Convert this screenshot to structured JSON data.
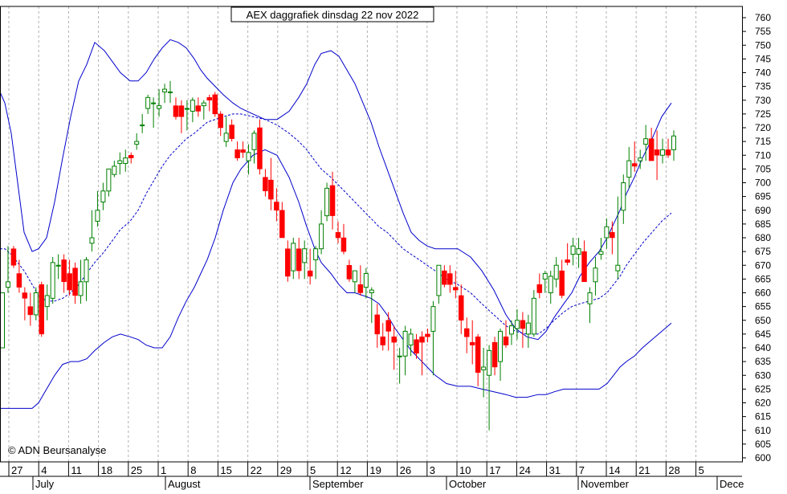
{
  "chart_data": {
    "type": "candlestick",
    "title": "AEX daggrafiek dinsdag 22 nov 2022",
    "copyright": "© ADN Beursanalyse",
    "ylim": [
      600,
      760
    ],
    "y_ticks": [
      600,
      605,
      610,
      615,
      620,
      625,
      630,
      635,
      640,
      645,
      650,
      655,
      660,
      665,
      670,
      675,
      680,
      685,
      690,
      695,
      700,
      705,
      710,
      715,
      720,
      725,
      730,
      735,
      740,
      745,
      750,
      755,
      760
    ],
    "x_tick_labels": [
      "27",
      "4",
      "11",
      "18",
      "25",
      "1",
      "8",
      "15",
      "22",
      "29",
      "5",
      "12",
      "19",
      "26",
      "3",
      "10",
      "17",
      "24",
      "31",
      "7",
      "14",
      "21",
      "28",
      "5"
    ],
    "months": [
      "July",
      "August",
      "September",
      "October",
      "November",
      "Dece"
    ],
    "grid": "vertical dashed at weekly ticks",
    "colors": {
      "up": "#008000",
      "down": "#ff0000",
      "band": "#0000cc",
      "background": "#ffffff",
      "grid": "#b0b0b0"
    },
    "candles": [
      [
        640,
        660,
        640,
        660
      ],
      [
        662,
        677,
        660,
        664
      ],
      [
        676,
        677,
        669,
        670
      ],
      [
        667,
        672,
        660,
        662
      ],
      [
        660,
        662,
        650,
        658
      ],
      [
        655,
        660,
        648,
        652
      ],
      [
        652,
        662,
        650,
        660
      ],
      [
        663,
        664,
        644,
        645
      ],
      [
        655,
        663,
        650,
        659
      ],
      [
        658,
        673,
        656,
        671
      ],
      [
        670,
        674,
        665,
        670
      ],
      [
        672,
        674,
        660,
        664
      ],
      [
        667,
        672,
        659,
        661
      ],
      [
        669,
        671,
        656,
        659
      ],
      [
        659,
        672,
        656,
        664
      ],
      [
        664,
        673,
        657,
        672
      ],
      [
        678,
        690,
        675,
        680
      ],
      [
        686,
        697,
        684,
        690
      ],
      [
        693,
        700,
        690,
        697
      ],
      [
        697,
        705,
        695,
        705
      ],
      [
        703,
        708,
        702,
        706
      ],
      [
        707,
        711,
        703,
        708
      ],
      [
        707,
        712,
        704,
        709
      ],
      [
        710,
        711,
        707,
        709
      ],
      [
        714,
        718,
        712,
        715
      ],
      [
        721,
        725,
        718,
        721
      ],
      [
        727,
        732,
        725,
        731
      ],
      [
        729,
        731,
        720,
        729
      ],
      [
        727,
        734,
        724,
        728
      ],
      [
        733,
        736,
        729,
        734
      ],
      [
        733,
        737,
        729,
        733
      ],
      [
        728,
        731,
        723,
        724
      ],
      [
        728,
        730,
        718,
        724
      ],
      [
        727,
        730,
        719,
        727
      ],
      [
        726,
        731,
        722,
        730
      ],
      [
        728,
        731,
        724,
        726
      ],
      [
        728,
        730,
        723,
        729
      ],
      [
        731,
        732,
        726,
        730
      ],
      [
        732,
        733,
        724,
        725
      ],
      [
        725,
        726,
        717,
        720
      ],
      [
        715,
        724,
        713,
        718
      ],
      [
        721,
        723,
        715,
        716
      ],
      [
        712,
        715,
        708,
        709
      ],
      [
        712,
        715,
        709,
        711
      ],
      [
        708,
        714,
        703,
        711
      ],
      [
        712,
        719,
        707,
        718
      ],
      [
        720,
        723,
        703,
        705
      ],
      [
        702,
        705,
        695,
        697
      ],
      [
        701,
        709,
        690,
        694
      ],
      [
        693,
        698,
        686,
        690
      ],
      [
        690,
        693,
        680,
        680
      ],
      [
        676,
        679,
        664,
        666
      ],
      [
        668,
        680,
        665,
        678
      ],
      [
        676,
        680,
        665,
        668
      ],
      [
        671,
        679,
        665,
        676
      ],
      [
        668,
        676,
        663,
        666
      ],
      [
        672,
        677,
        665,
        676
      ],
      [
        676,
        690,
        674,
        685
      ],
      [
        688,
        700,
        686,
        698
      ],
      [
        699,
        704,
        683,
        688
      ],
      [
        682,
        686,
        678,
        680
      ],
      [
        680,
        685,
        674,
        675
      ],
      [
        670,
        672,
        664,
        665
      ],
      [
        664,
        668,
        660,
        668
      ],
      [
        663,
        670,
        659,
        660
      ],
      [
        662,
        669,
        658,
        667
      ],
      [
        660,
        662,
        649,
        661
      ],
      [
        652,
        656,
        640,
        645
      ],
      [
        644,
        649,
        639,
        641
      ],
      [
        650,
        653,
        639,
        646
      ],
      [
        644,
        648,
        632,
        642
      ],
      [
        637,
        640,
        627,
        637
      ],
      [
        637,
        648,
        630,
        646
      ],
      [
        641,
        647,
        637,
        645
      ],
      [
        643,
        645,
        636,
        638
      ],
      [
        644,
        646,
        630,
        642
      ],
      [
        645,
        647,
        642,
        644
      ],
      [
        646,
        657,
        630,
        655
      ],
      [
        659,
        670,
        656,
        670
      ],
      [
        668,
        670,
        662,
        663
      ],
      [
        667,
        670,
        660,
        663
      ],
      [
        662,
        668,
        658,
        661
      ],
      [
        659,
        663,
        645,
        650
      ],
      [
        647,
        651,
        638,
        644
      ],
      [
        642,
        650,
        634,
        641
      ],
      [
        644,
        645,
        626,
        631
      ],
      [
        632,
        640,
        622,
        633
      ],
      [
        630,
        641,
        610,
        639
      ],
      [
        642,
        644,
        630,
        633
      ],
      [
        635,
        647,
        628,
        646
      ],
      [
        644,
        650,
        640,
        641
      ],
      [
        645,
        650,
        641,
        648
      ],
      [
        647,
        654,
        643,
        650
      ],
      [
        650,
        653,
        640,
        647
      ],
      [
        645,
        652,
        640,
        649
      ],
      [
        645,
        661,
        644,
        658
      ],
      [
        663,
        667,
        658,
        660
      ],
      [
        665,
        668,
        660,
        667
      ],
      [
        660,
        668,
        656,
        666
      ],
      [
        665,
        673,
        662,
        670
      ],
      [
        668,
        672,
        658,
        659
      ],
      [
        672,
        678,
        670,
        671
      ],
      [
        674,
        680,
        670,
        677
      ],
      [
        674,
        680,
        669,
        676
      ],
      [
        675,
        679,
        665,
        664
      ],
      [
        656,
        662,
        649,
        660
      ],
      [
        664,
        673,
        659,
        669
      ],
      [
        674,
        680,
        672,
        675
      ],
      [
        680,
        687,
        676,
        684
      ],
      [
        682,
        686,
        674,
        680
      ],
      [
        668,
        695,
        665,
        670
      ],
      [
        690,
        703,
        685,
        700
      ],
      [
        702,
        713,
        698,
        708
      ],
      [
        707,
        715,
        704,
        706
      ],
      [
        708,
        712,
        705,
        709
      ],
      [
        714,
        721,
        708,
        716
      ],
      [
        716,
        720,
        708,
        708
      ],
      [
        712,
        719,
        701,
        710
      ],
      [
        710,
        716,
        707,
        712
      ],
      [
        712,
        716,
        709,
        710
      ],
      [
        712,
        719,
        708,
        717
      ]
    ],
    "bollinger_upper": [
      [
        0,
        733
      ],
      [
        6,
        729
      ],
      [
        14,
        718
      ],
      [
        22,
        700
      ],
      [
        30,
        682
      ],
      [
        40,
        675
      ],
      [
        48,
        676
      ],
      [
        58,
        680
      ],
      [
        68,
        693
      ],
      [
        78,
        709
      ],
      [
        88,
        724
      ],
      [
        98,
        737
      ],
      [
        108,
        743
      ],
      [
        118,
        751
      ],
      [
        130,
        748
      ],
      [
        140,
        744
      ],
      [
        150,
        740
      ],
      [
        162,
        737
      ],
      [
        172,
        737
      ],
      [
        182,
        740
      ],
      [
        192,
        745
      ],
      [
        202,
        749
      ],
      [
        212,
        752
      ],
      [
        222,
        751
      ],
      [
        232,
        749
      ],
      [
        242,
        745
      ],
      [
        250,
        741
      ],
      [
        258,
        738
      ],
      [
        268,
        735
      ],
      [
        278,
        732
      ],
      [
        290,
        729
      ],
      [
        300,
        727
      ],
      [
        315,
        725
      ],
      [
        330,
        723
      ],
      [
        345,
        723
      ],
      [
        360,
        726
      ],
      [
        372,
        731
      ],
      [
        382,
        736
      ],
      [
        392,
        743
      ],
      [
        400,
        747
      ],
      [
        412,
        748
      ],
      [
        422,
        746
      ],
      [
        432,
        741
      ],
      [
        442,
        736
      ],
      [
        452,
        729
      ],
      [
        462,
        722
      ],
      [
        472,
        713
      ],
      [
        482,
        705
      ],
      [
        492,
        697
      ],
      [
        502,
        689
      ],
      [
        512,
        682
      ],
      [
        522,
        679
      ],
      [
        532,
        677
      ],
      [
        542,
        676
      ],
      [
        556,
        676
      ],
      [
        570,
        676
      ],
      [
        586,
        673
      ],
      [
        600,
        668
      ],
      [
        615,
        661
      ],
      [
        630,
        652
      ],
      [
        642,
        647
      ],
      [
        656,
        644
      ],
      [
        670,
        643
      ],
      [
        680,
        646
      ],
      [
        690,
        651
      ],
      [
        702,
        656
      ],
      [
        712,
        660
      ],
      [
        722,
        666
      ],
      [
        734,
        671
      ],
      [
        746,
        675
      ],
      [
        756,
        680
      ],
      [
        764,
        685
      ],
      [
        772,
        690
      ],
      [
        780,
        696
      ],
      [
        790,
        702
      ],
      [
        800,
        709
      ],
      [
        812,
        716
      ],
      [
        824,
        724
      ],
      [
        836,
        729
      ]
    ],
    "bollinger_middle": [
      [
        0,
        676
      ],
      [
        6,
        676
      ],
      [
        14,
        674
      ],
      [
        22,
        671
      ],
      [
        30,
        668
      ],
      [
        40,
        663
      ],
      [
        48,
        659
      ],
      [
        58,
        657
      ],
      [
        68,
        657
      ],
      [
        78,
        658
      ],
      [
        88,
        660
      ],
      [
        98,
        663
      ],
      [
        108,
        667
      ],
      [
        118,
        671
      ],
      [
        130,
        675
      ],
      [
        140,
        679
      ],
      [
        150,
        683
      ],
      [
        162,
        686
      ],
      [
        172,
        690
      ],
      [
        182,
        696
      ],
      [
        192,
        701
      ],
      [
        202,
        706
      ],
      [
        212,
        710
      ],
      [
        222,
        713
      ],
      [
        232,
        716
      ],
      [
        242,
        718
      ],
      [
        250,
        720
      ],
      [
        258,
        722
      ],
      [
        268,
        723
      ],
      [
        278,
        724
      ],
      [
        290,
        725
      ],
      [
        300,
        725
      ],
      [
        315,
        724
      ],
      [
        330,
        723
      ],
      [
        345,
        721
      ],
      [
        360,
        718
      ],
      [
        372,
        715
      ],
      [
        382,
        712
      ],
      [
        392,
        708
      ],
      [
        400,
        705
      ],
      [
        412,
        702
      ],
      [
        422,
        699
      ],
      [
        432,
        696
      ],
      [
        442,
        693
      ],
      [
        452,
        690
      ],
      [
        462,
        687
      ],
      [
        472,
        684
      ],
      [
        482,
        682
      ],
      [
        492,
        679
      ],
      [
        502,
        676
      ],
      [
        512,
        674
      ],
      [
        522,
        672
      ],
      [
        532,
        670
      ],
      [
        542,
        668
      ],
      [
        556,
        665
      ],
      [
        570,
        663
      ],
      [
        586,
        660
      ],
      [
        600,
        656
      ],
      [
        615,
        652
      ],
      [
        630,
        648
      ],
      [
        642,
        646
      ],
      [
        656,
        645
      ],
      [
        670,
        645
      ],
      [
        680,
        647
      ],
      [
        690,
        650
      ],
      [
        702,
        653
      ],
      [
        712,
        655
      ],
      [
        722,
        656
      ],
      [
        734,
        657
      ],
      [
        746,
        658
      ],
      [
        756,
        660
      ],
      [
        764,
        663
      ],
      [
        772,
        666
      ],
      [
        780,
        670
      ],
      [
        790,
        674
      ],
      [
        800,
        678
      ],
      [
        812,
        682
      ],
      [
        824,
        686
      ],
      [
        836,
        689
      ]
    ],
    "bollinger_lower": [
      [
        0,
        618
      ],
      [
        6,
        618
      ],
      [
        14,
        618
      ],
      [
        22,
        618
      ],
      [
        30,
        618
      ],
      [
        40,
        618
      ],
      [
        48,
        620
      ],
      [
        58,
        625
      ],
      [
        68,
        630
      ],
      [
        78,
        634
      ],
      [
        88,
        635
      ],
      [
        98,
        635
      ],
      [
        108,
        636
      ],
      [
        118,
        639
      ],
      [
        130,
        642
      ],
      [
        140,
        644
      ],
      [
        150,
        645
      ],
      [
        162,
        644
      ],
      [
        172,
        643
      ],
      [
        182,
        641
      ],
      [
        192,
        640
      ],
      [
        202,
        640
      ],
      [
        212,
        644
      ],
      [
        222,
        651
      ],
      [
        232,
        657
      ],
      [
        242,
        662
      ],
      [
        250,
        667
      ],
      [
        258,
        672
      ],
      [
        268,
        680
      ],
      [
        278,
        690
      ],
      [
        290,
        700
      ],
      [
        300,
        705
      ],
      [
        315,
        710
      ],
      [
        330,
        712
      ],
      [
        345,
        710
      ],
      [
        360,
        702
      ],
      [
        372,
        693
      ],
      [
        382,
        684
      ],
      [
        392,
        676
      ],
      [
        400,
        671
      ],
      [
        412,
        667
      ],
      [
        422,
        663
      ],
      [
        432,
        660
      ],
      [
        442,
        660
      ],
      [
        452,
        659
      ],
      [
        462,
        658
      ],
      [
        472,
        656
      ],
      [
        482,
        652
      ],
      [
        492,
        647
      ],
      [
        502,
        643
      ],
      [
        512,
        639
      ],
      [
        522,
        636
      ],
      [
        532,
        633
      ],
      [
        542,
        630
      ],
      [
        556,
        627
      ],
      [
        570,
        626
      ],
      [
        586,
        626
      ],
      [
        600,
        625
      ],
      [
        615,
        624
      ],
      [
        630,
        623
      ],
      [
        642,
        622
      ],
      [
        656,
        622
      ],
      [
        670,
        623
      ],
      [
        680,
        623
      ],
      [
        690,
        624
      ],
      [
        702,
        625
      ],
      [
        712,
        625
      ],
      [
        722,
        625
      ],
      [
        734,
        625
      ],
      [
        746,
        625
      ],
      [
        756,
        627
      ],
      [
        764,
        630
      ],
      [
        772,
        633
      ],
      [
        780,
        635
      ],
      [
        790,
        637
      ],
      [
        800,
        640
      ],
      [
        812,
        643
      ],
      [
        824,
        646
      ],
      [
        836,
        649
      ]
    ]
  }
}
